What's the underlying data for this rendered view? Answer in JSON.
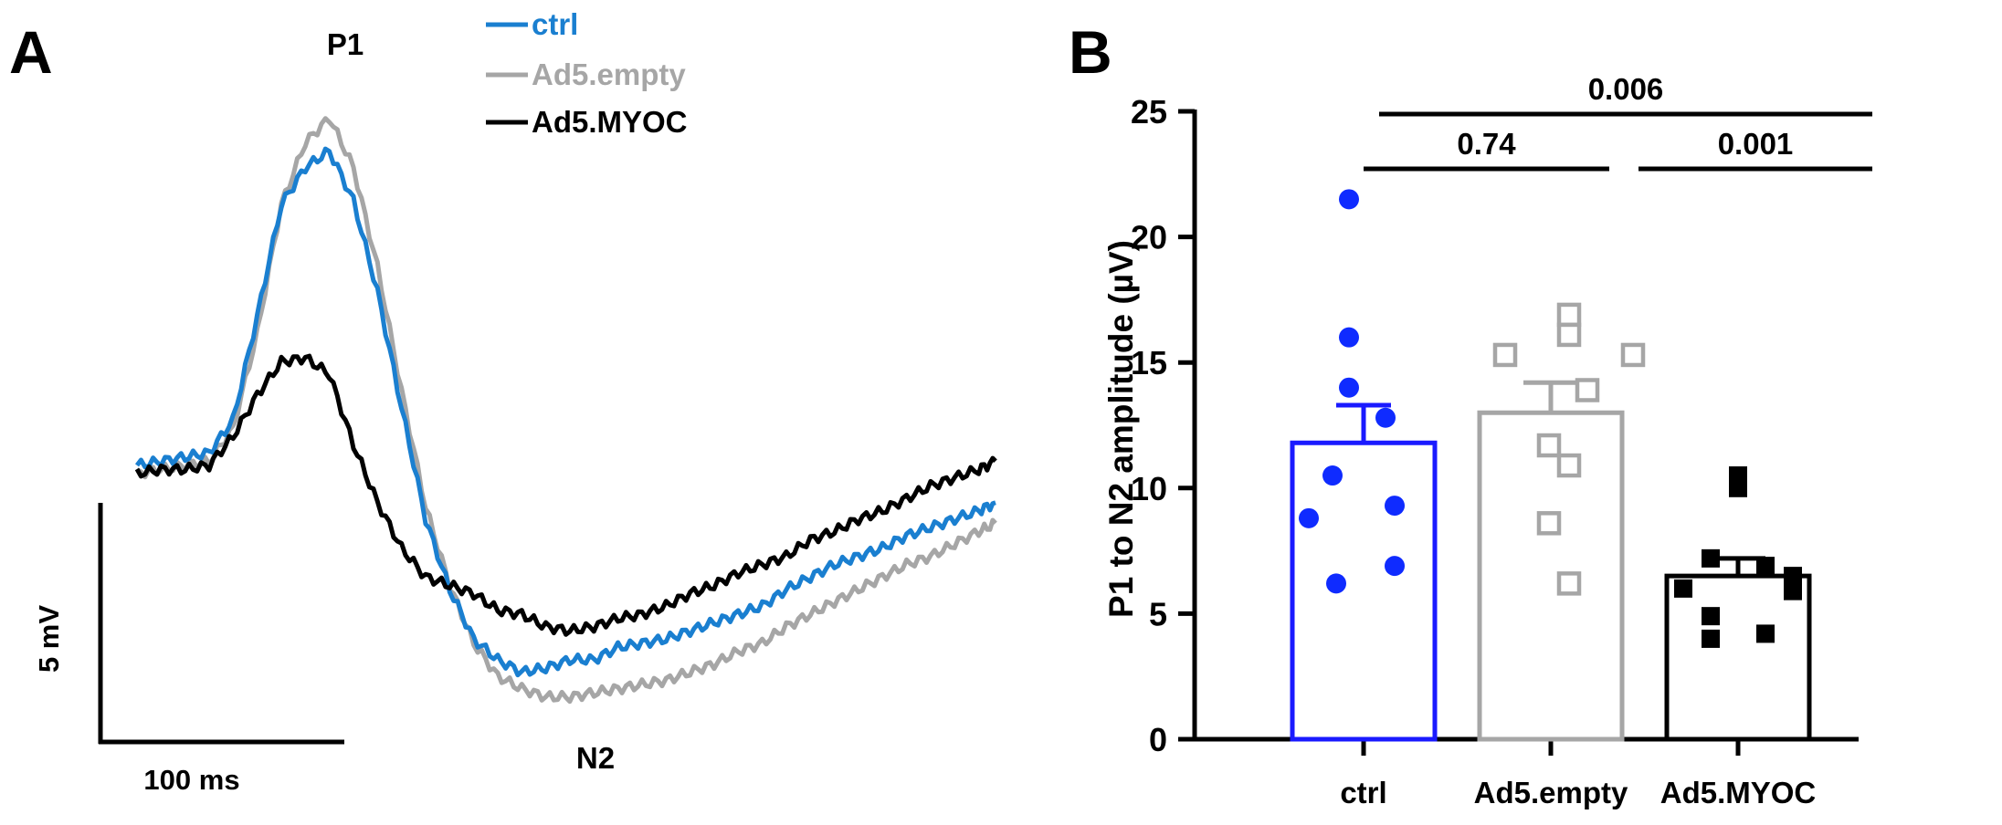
{
  "figure": {
    "panels": {
      "a": {
        "label": "A"
      },
      "b": {
        "label": "B"
      }
    }
  },
  "colors": {
    "ctrl": "#1a7fd0",
    "ctrl_bar": "#1a1aff",
    "ctrl_points": "#0f2bff",
    "empty": "#a6a6a6",
    "myoc": "#000000"
  },
  "chart_data": [
    {
      "type": "line",
      "panel": "A",
      "title": "",
      "x_scale_bar": {
        "value": 100,
        "unit": "ms",
        "label": "100 ms"
      },
      "y_scale_bar": {
        "value": 5,
        "unit": "mV",
        "label": "5 mV"
      },
      "annotations": [
        {
          "text": "P1",
          "near": "peak"
        },
        {
          "text": "N2",
          "near": "trough"
        }
      ],
      "legend": {
        "position": "top-center",
        "entries": [
          "ctrl",
          "Ad5.empty",
          "Ad5.MYOC"
        ]
      },
      "x_units": "ms",
      "y_units": "mV",
      "x_range": [
        0,
        357
      ],
      "y_range": [
        -7.0,
        8.0
      ],
      "series": [
        {
          "name": "ctrl",
          "color": "#1a7fd0",
          "x": [
            0,
            10,
            20,
            30,
            40,
            50,
            60,
            70,
            80,
            90,
            100,
            110,
            120,
            130,
            140,
            150,
            160,
            170,
            180,
            190,
            200,
            210,
            220,
            230,
            240,
            250,
            260,
            270,
            280,
            290,
            300,
            310,
            320,
            330,
            340,
            350,
            357
          ],
          "y": [
            -0.6,
            -0.5,
            -0.4,
            -0.3,
            0.5,
            3.0,
            5.7,
            6.6,
            7.0,
            5.8,
            3.6,
            0.8,
            -1.9,
            -3.6,
            -4.8,
            -5.3,
            -5.6,
            -5.5,
            -5.3,
            -5.3,
            -5.0,
            -4.9,
            -4.8,
            -4.6,
            -4.4,
            -4.2,
            -4.0,
            -3.6,
            -3.3,
            -3.0,
            -2.8,
            -2.6,
            -2.3,
            -2.1,
            -1.9,
            -1.7,
            -1.5
          ]
        },
        {
          "name": "Ad5.empty",
          "color": "#a6a6a6",
          "x": [
            0,
            10,
            20,
            30,
            40,
            50,
            60,
            70,
            80,
            90,
            100,
            110,
            120,
            130,
            140,
            150,
            160,
            170,
            180,
            190,
            200,
            210,
            220,
            230,
            240,
            250,
            260,
            270,
            280,
            290,
            300,
            310,
            320,
            330,
            340,
            350,
            357
          ],
          "y": [
            -0.8,
            -0.7,
            -0.6,
            -0.5,
            0.3,
            2.6,
            5.7,
            7.2,
            7.8,
            6.6,
            4.2,
            1.2,
            -1.6,
            -3.5,
            -4.9,
            -5.7,
            -6.0,
            -6.2,
            -6.2,
            -6.1,
            -6.0,
            -5.9,
            -5.8,
            -5.6,
            -5.4,
            -5.1,
            -4.9,
            -4.5,
            -4.2,
            -3.9,
            -3.6,
            -3.3,
            -3.0,
            -2.8,
            -2.5,
            -2.2,
            -2.0
          ]
        },
        {
          "name": "Ad5.MYOC",
          "color": "#000000",
          "x": [
            0,
            10,
            20,
            30,
            40,
            50,
            60,
            70,
            80,
            90,
            100,
            110,
            120,
            130,
            140,
            150,
            160,
            170,
            180,
            190,
            200,
            210,
            220,
            230,
            240,
            250,
            260,
            270,
            280,
            290,
            300,
            310,
            320,
            330,
            340,
            350,
            357
          ],
          "y": [
            -0.8,
            -0.7,
            -0.7,
            -0.6,
            0.1,
            1.1,
            1.9,
            2.0,
            1.6,
            -0.1,
            -1.5,
            -2.6,
            -3.3,
            -3.5,
            -3.7,
            -4.1,
            -4.2,
            -4.5,
            -4.6,
            -4.5,
            -4.3,
            -4.2,
            -4.0,
            -3.7,
            -3.5,
            -3.2,
            -3.0,
            -2.8,
            -2.4,
            -2.2,
            -1.9,
            -1.7,
            -1.4,
            -1.1,
            -0.9,
            -0.7,
            -0.5
          ]
        }
      ]
    },
    {
      "type": "bar",
      "panel": "B",
      "title": "",
      "xlabel": "",
      "ylabel": "P1 to N2 amplitude (µV)",
      "ylim": [
        0,
        25
      ],
      "yticks": [
        0,
        5,
        10,
        15,
        20,
        25
      ],
      "ytick_labels": [
        "0",
        "5",
        "10",
        "15",
        "20",
        "25"
      ],
      "categories": [
        "ctrl",
        "Ad5.empty",
        "Ad5.MYOC"
      ],
      "values": [
        11.8,
        13.0,
        6.5
      ],
      "errors": [
        1.5,
        1.2,
        0.7
      ],
      "bar_colors": [
        "#1a1aff",
        "#a6a6a6",
        "#000000"
      ],
      "points": [
        {
          "values": [
            21.5,
            16.0,
            14.0,
            12.8,
            10.5,
            9.3,
            8.8,
            6.9,
            6.2
          ],
          "marker": "circle",
          "filled": true,
          "color": "#0f2bff"
        },
        {
          "values": [
            16.9,
            16.1,
            15.3,
            15.3,
            13.9,
            11.7,
            10.9,
            8.6,
            6.2
          ],
          "marker": "square",
          "filled": false,
          "color": "#a6a6a6"
        },
        {
          "values": [
            10.5,
            10.0,
            7.2,
            6.9,
            6.5,
            6.0,
            5.9,
            4.9,
            4.2,
            4.0
          ],
          "marker": "square",
          "filled": true,
          "color": "#000000"
        }
      ],
      "comparisons": [
        {
          "from": 0,
          "to": 1,
          "label": "0.74"
        },
        {
          "from": 1,
          "to": 2,
          "label": "0.001"
        },
        {
          "from": 0,
          "to": 2,
          "label": "0.006"
        }
      ]
    }
  ]
}
